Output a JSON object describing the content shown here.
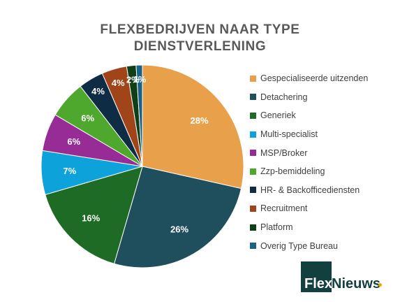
{
  "chart_data": {
    "type": "pie",
    "title_lines": [
      "FLEXBEDRIJVEN NAAR TYPE",
      "DIENSTVERLENING"
    ],
    "categories": [
      "Gespecialiseerde uitzenden",
      "Detachering",
      "Generiek",
      "Multi-specialist",
      "MSP/Broker",
      "Zzp-bemiddeling",
      "HR- & Backofficediensten",
      "Recruitment",
      "Platform",
      "Overig Type Bureau"
    ],
    "values": [
      28.5,
      26,
      16,
      7,
      6,
      6,
      4,
      4,
      1.5,
      1
    ],
    "labels": [
      "28%",
      "26%",
      "16%",
      "7%",
      "6%",
      "6%",
      "4%",
      "4%",
      "2%",
      "1%"
    ],
    "colors": [
      "#E8A04A",
      "#1F4E5C",
      "#1E6B25",
      "#0DA2D9",
      "#982C96",
      "#4FA82E",
      "#0E2D45",
      "#A0441A",
      "#0E3F16",
      "#1B6187"
    ],
    "legend_position": "right"
  },
  "logo": {
    "part1": "Flex",
    "part2": "Nieuws"
  }
}
